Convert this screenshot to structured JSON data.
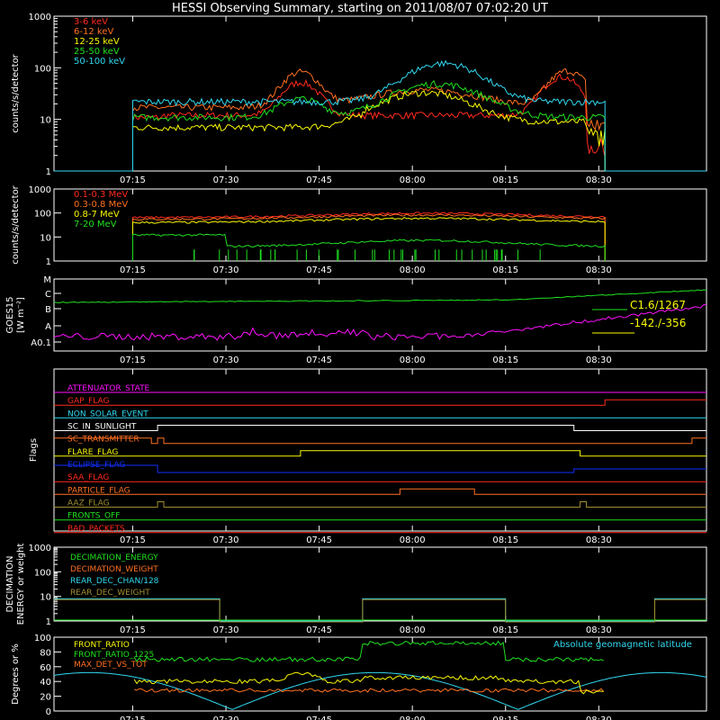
{
  "title": "HESSI Observing Summary, starting on 2011/08/07 07:02:20 UT",
  "time_ticks": [
    "07:15",
    "07:30",
    "07:45",
    "08:00",
    "08:15",
    "08:30"
  ],
  "colors": {
    "red": "#ff2a1f",
    "orange": "#ff7020",
    "yellow": "#f8f800",
    "green": "#20e020",
    "cyan": "#30d8f0",
    "magenta": "#ff10ff",
    "blue": "#1030ff",
    "olive": "#a08e30",
    "white": "#ffffff"
  },
  "chart_data": [
    {
      "type": "line",
      "ylabel": "counts/s/detector",
      "ylim": [
        1,
        1000
      ],
      "yscale": "log",
      "yticks": [
        "1",
        "10",
        "100",
        "1000"
      ],
      "legend_placement": "top-left",
      "series": [
        {
          "name": "3-6 keV",
          "color": "red",
          "base": 11,
          "segments": [
            [
              "07:15",
              "07:29",
              12
            ],
            [
              "07:29",
              "07:52",
              12
            ],
            [
              "07:52",
              "08:30",
              14
            ]
          ]
        },
        {
          "name": "6-12 keV",
          "color": "orange",
          "base": 17,
          "peaks": [
            [
              "07:42",
              80
            ],
            [
              "08:02",
              48
            ],
            [
              "08:25",
              90
            ]
          ]
        },
        {
          "name": "12-25 keV",
          "color": "yellow",
          "base": 7,
          "peaks": [
            [
              "08:02",
              32
            ]
          ]
        },
        {
          "name": "25-50 keV",
          "color": "green",
          "base": 11,
          "peaks": [
            [
              "08:04",
              50
            ]
          ]
        },
        {
          "name": "50-100 keV",
          "color": "cyan",
          "base": 22,
          "peaks": [
            [
              "08:05",
              130
            ]
          ]
        }
      ]
    },
    {
      "type": "line",
      "ylabel": "counts/s/detector",
      "ylim": [
        1,
        1000
      ],
      "yscale": "log",
      "yticks": [
        "1",
        "10",
        "100",
        "1000"
      ],
      "legend_placement": "top-left",
      "series": [
        {
          "name": "0.1-0.3 MeV",
          "color": "red",
          "level": 65
        },
        {
          "name": "0.3-0.8 MeV",
          "color": "orange",
          "level": 55
        },
        {
          "name": "0.8-7 MeV",
          "color": "yellow",
          "level": 40
        },
        {
          "name": "7-20 MeV",
          "color": "green",
          "level": 8
        }
      ]
    },
    {
      "type": "line",
      "ylabel": "GOES15",
      "ylabel2": "[W m⁻²]",
      "yticks": [
        "A0.1",
        "A",
        "B",
        "C",
        "M"
      ],
      "series": [
        {
          "name": "GOES high",
          "color": "green"
        },
        {
          "name": "GOES low",
          "color": "magenta"
        }
      ],
      "annotations": [
        "C1.6/1267",
        "-142./-356"
      ]
    },
    {
      "type": "table",
      "ylabel": "Flags",
      "flags": [
        {
          "name": "ATTENUATOR_STATE",
          "color": "magenta"
        },
        {
          "name": "GAP_FLAG",
          "color": "red"
        },
        {
          "name": "NON_SOLAR_EVENT",
          "color": "cyan"
        },
        {
          "name": "SC_IN_SUNLIGHT",
          "color": "white"
        },
        {
          "name": "SC_TRANSMITTER",
          "color": "orange"
        },
        {
          "name": "FLARE_FLAG",
          "color": "yellow"
        },
        {
          "name": "ECLIPSE_FLAG",
          "color": "blue"
        },
        {
          "name": "SAA_FLAG",
          "color": "red"
        },
        {
          "name": "PARTICLE_FLAG",
          "color": "orange"
        },
        {
          "name": "AAZ_FLAG",
          "color": "olive"
        },
        {
          "name": "FRONTS_OFF",
          "color": "green"
        },
        {
          "name": "BAD_PACKETS",
          "color": "red"
        }
      ]
    },
    {
      "type": "line",
      "ylabel": "DECIMATION",
      "ylabel2": "ENERGY or weight",
      "ylim": [
        1,
        1000
      ],
      "yscale": "log",
      "yticks": [
        "1",
        "10",
        "100",
        "1000"
      ],
      "series": [
        {
          "name": "DECIMATION_ENERGY",
          "color": "green"
        },
        {
          "name": "DECIMATION_WEIGHT",
          "color": "orange"
        },
        {
          "name": "REAR_DEC_CHAN/128",
          "color": "cyan"
        },
        {
          "name": "REAR_DEC_WEIGHT",
          "color": "olive"
        }
      ]
    },
    {
      "type": "line",
      "ylabel": "Degrees or %",
      "ylim": [
        0,
        100
      ],
      "yticks": [
        "0",
        "20",
        "40",
        "60",
        "80",
        "100"
      ],
      "series": [
        {
          "name": "FRONT_RATIO",
          "color": "yellow"
        },
        {
          "name": "FRONT_RATIO_1225",
          "color": "green"
        },
        {
          "name": "MAX_DET_VS_TOT",
          "color": "orange"
        },
        {
          "name": "Absolute geomagnetic latitude",
          "color": "cyan"
        }
      ]
    }
  ]
}
